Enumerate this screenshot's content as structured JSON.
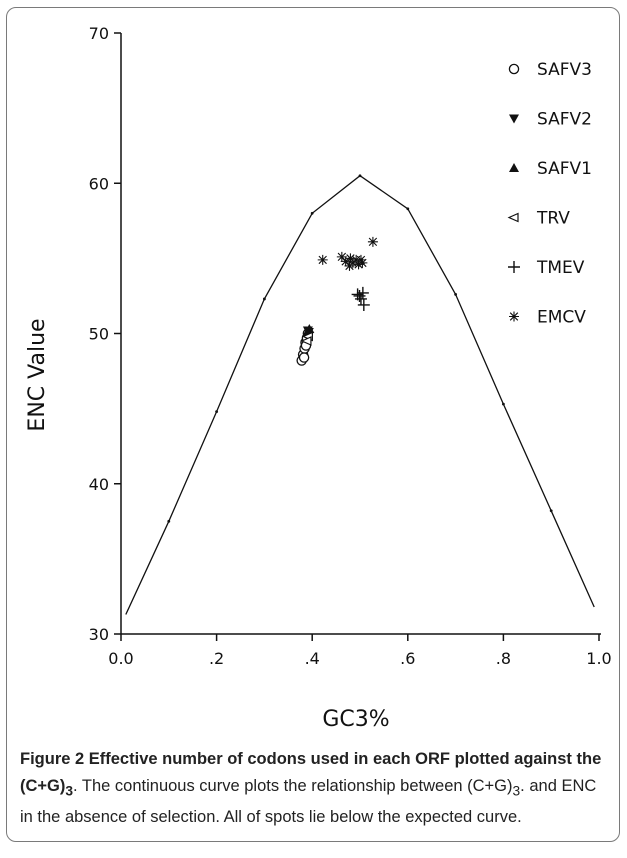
{
  "chart_data": {
    "type": "scatter",
    "title": "",
    "xlabel": "GC3%",
    "ylabel": "ENC Value",
    "xlim": [
      0,
      1
    ],
    "ylim": [
      30,
      70
    ],
    "xticks": [
      {
        "value": 0.0,
        "label": "0.0"
      },
      {
        "value": 0.2,
        "label": ".2"
      },
      {
        "value": 0.4,
        "label": ".4"
      },
      {
        "value": 0.6,
        "label": ".6"
      },
      {
        "value": 0.8,
        "label": ".8"
      },
      {
        "value": 1.0,
        "label": "1.0"
      }
    ],
    "yticks": [
      {
        "value": 30,
        "label": "30"
      },
      {
        "value": 40,
        "label": "40"
      },
      {
        "value": 50,
        "label": "50"
      },
      {
        "value": 60,
        "label": "60"
      },
      {
        "value": 70,
        "label": "70"
      }
    ],
    "grid": false,
    "legend_position": "top-right",
    "expected_curve": {
      "x": [
        0.01,
        0.1,
        0.2,
        0.3,
        0.4,
        0.5,
        0.6,
        0.7,
        0.8,
        0.9,
        0.99
      ],
      "y": [
        31.3,
        37.5,
        44.8,
        52.3,
        58.0,
        60.5,
        58.3,
        52.6,
        45.3,
        38.2,
        31.8
      ]
    },
    "series": [
      {
        "name": "SAFV3",
        "marker": "circle-open",
        "points": [
          [
            0.378,
            48.2
          ],
          [
            0.381,
            48.6
          ],
          [
            0.384,
            49.0
          ],
          [
            0.386,
            49.4
          ],
          [
            0.389,
            49.7
          ],
          [
            0.391,
            50.0
          ],
          [
            0.383,
            48.4
          ],
          [
            0.387,
            49.2
          ]
        ]
      },
      {
        "name": "SAFV2",
        "marker": "triangle-down",
        "points": [
          [
            0.391,
            50.2
          ],
          [
            0.393,
            50.1
          ]
        ]
      },
      {
        "name": "SAFV1",
        "marker": "triangle-up",
        "points": [
          [
            0.394,
            50.3
          ],
          [
            0.39,
            50.1
          ]
        ]
      },
      {
        "name": "TRV",
        "marker": "triangle-left-open",
        "points": [
          [
            0.392,
            49.8
          ],
          [
            0.389,
            49.5
          ]
        ]
      },
      {
        "name": "TMEV",
        "marker": "plus",
        "points": [
          [
            0.495,
            52.6
          ],
          [
            0.502,
            52.3
          ],
          [
            0.506,
            52.7
          ],
          [
            0.508,
            51.9
          ],
          [
            0.499,
            52.5
          ]
        ]
      },
      {
        "name": "EMCV",
        "marker": "asterisk",
        "points": [
          [
            0.422,
            54.9
          ],
          [
            0.462,
            55.1
          ],
          [
            0.47,
            54.8
          ],
          [
            0.478,
            54.5
          ],
          [
            0.485,
            54.7
          ],
          [
            0.492,
            54.9
          ],
          [
            0.497,
            54.6
          ],
          [
            0.502,
            54.9
          ],
          [
            0.505,
            54.7
          ],
          [
            0.527,
            56.1
          ],
          [
            0.48,
            55.0
          ]
        ]
      }
    ]
  },
  "caption": {
    "bold": "Figure 2 Effective number of codons used in each ORF plotted against the (C+G)",
    "bold_sub": "3",
    "text_1": ". The continuous curve plots the relationship between (C+G)",
    "text_sub": "3",
    "text_2": ". and ENC in the absence of selection. All of spots lie below the expected curve."
  }
}
